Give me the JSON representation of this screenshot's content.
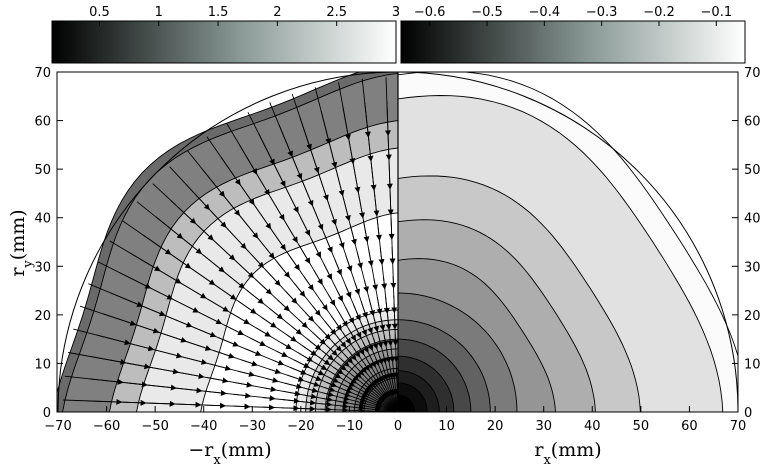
{
  "chart_data": {
    "type": "contour",
    "panels": [
      {
        "name": "left",
        "x_axis_label": "−r_x(mm)",
        "xlim": [
          -70,
          0
        ],
        "xticks": [
          -70,
          -60,
          -50,
          -40,
          -30,
          -20,
          -10,
          0
        ],
        "xtick_labels": [
          "−70",
          "−60",
          "−50",
          "−40",
          "−30",
          "−20",
          "−10",
          "0"
        ],
        "ylim": [
          0,
          70
        ],
        "yticks": [
          0,
          10,
          20,
          30,
          40,
          50,
          60,
          70
        ],
        "colorbar": {
          "colormap": "gray",
          "range": [
            0.1,
            3.0
          ],
          "ticks": [
            0.5,
            1,
            1.5,
            2,
            2.5,
            3
          ],
          "tick_labels": [
            "0.5",
            "1",
            "1.5",
            "2",
            "2.5",
            "3"
          ]
        },
        "contour_levels_radius_mm": [
          70,
          68,
          58.5,
          53,
          40,
          21,
          19,
          17,
          15,
          13,
          11,
          9,
          7
        ],
        "fill_values": [
          1.3,
          1.55,
          2.25,
          2.75,
          3.0,
          2.75,
          2.5,
          2.25,
          2.0,
          1.8,
          1.6,
          1.4,
          1.2
        ],
        "vector_field": "radial arrows pointing toward origin",
        "arrow_rings_mm": [
          4,
          8,
          12,
          16,
          20,
          24,
          28,
          34,
          40,
          46,
          52,
          58,
          64,
          69
        ],
        "arrow_count_per_ring": 22
      },
      {
        "name": "right",
        "x_axis_label": "r_x(mm)",
        "xlim": [
          0,
          70
        ],
        "xticks": [
          0,
          10,
          20,
          30,
          40,
          50,
          60,
          70
        ],
        "xtick_labels": [
          "0",
          "10",
          "20",
          "30",
          "40",
          "50",
          "60",
          "70"
        ],
        "ylim": [
          0,
          70
        ],
        "yticks": [
          0,
          10,
          20,
          30,
          40,
          50,
          60,
          70
        ],
        "colorbar": {
          "colormap": "gray",
          "range": [
            -0.65,
            -0.05
          ],
          "ticks": [
            -0.6,
            -0.5,
            -0.4,
            -0.3,
            -0.2,
            -0.1
          ],
          "tick_labels": [
            "−0.6",
            "−0.5",
            "−0.4",
            "−0.3",
            "−0.2",
            "−0.1"
          ]
        },
        "contour_levels_radius_mm": [
          70,
          65,
          48.5,
          39.5,
          31.5,
          24.5,
          19,
          15,
          11.5,
          8.5,
          6,
          3.5
        ],
        "fill_values": [
          -0.06,
          -0.12,
          -0.18,
          -0.24,
          -0.3,
          -0.36,
          -0.42,
          -0.48,
          -0.54,
          -0.58,
          -0.62,
          -0.65
        ]
      }
    ],
    "y_axis_label": "r_y(mm)"
  }
}
